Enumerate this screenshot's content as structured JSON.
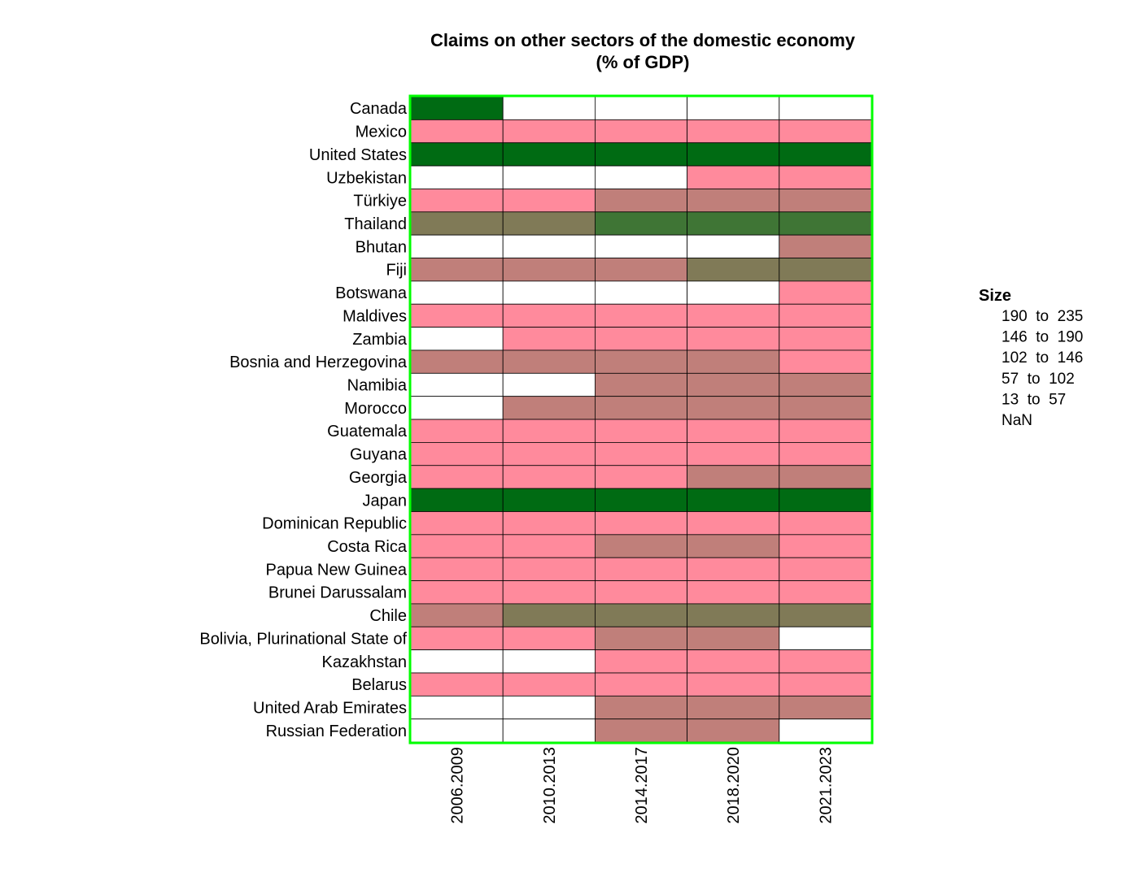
{
  "chart_data": {
    "type": "heatmap",
    "title_lines": [
      "Claims on other sectors of the domestic economy",
      "(% of GDP)"
    ],
    "columns": [
      "2006.2009",
      "2010.2013",
      "2014.2017",
      "2018.2020",
      "2021.2023"
    ],
    "rows": [
      "Canada",
      "Mexico",
      "United States",
      "Uzbekistan",
      "Türkiye",
      "Thailand",
      "Bhutan",
      "Fiji",
      "Botswana",
      "Maldives",
      "Zambia",
      "Bosnia and Herzegovina",
      "Namibia",
      "Morocco",
      "Guatemala",
      "Guyana",
      "Georgia",
      "Japan",
      "Dominican Republic",
      "Costa Rica",
      "Papua New Guinea",
      "Brunei Darussalam",
      "Chile",
      "Bolivia, Plurinational State of",
      "Kazakhstan",
      "Belarus",
      "United Arab Emirates",
      "Russian Federation"
    ],
    "bins": [
      {
        "label": "190  to  235",
        "low": 190,
        "high": 235,
        "color": "#006b13"
      },
      {
        "label": "146  to  190",
        "low": 146,
        "high": 190,
        "color": "#3f7535"
      },
      {
        "label": "102  to  146",
        "low": 102,
        "high": 146,
        "color": "#807a57"
      },
      {
        "label": "57  to  102",
        "low": 57,
        "high": 102,
        "color": "#c07f7a"
      },
      {
        "label": "13  to  57",
        "low": 13,
        "high": 57,
        "color": "#ff8a9c"
      },
      {
        "label": "NaN",
        "low": null,
        "high": null,
        "color": "#ffffff"
      }
    ],
    "values": [
      [
        0,
        5,
        5,
        5,
        5
      ],
      [
        4,
        4,
        4,
        4,
        4
      ],
      [
        0,
        0,
        0,
        0,
        0
      ],
      [
        5,
        5,
        5,
        4,
        4
      ],
      [
        4,
        4,
        3,
        3,
        3
      ],
      [
        2,
        2,
        1,
        1,
        1
      ],
      [
        5,
        5,
        5,
        5,
        3
      ],
      [
        3,
        3,
        3,
        2,
        2
      ],
      [
        5,
        5,
        5,
        5,
        4
      ],
      [
        4,
        4,
        4,
        4,
        4
      ],
      [
        5,
        4,
        4,
        4,
        4
      ],
      [
        3,
        3,
        3,
        3,
        4
      ],
      [
        5,
        5,
        3,
        3,
        3
      ],
      [
        5,
        3,
        3,
        3,
        3
      ],
      [
        4,
        4,
        4,
        4,
        4
      ],
      [
        4,
        4,
        4,
        4,
        4
      ],
      [
        4,
        4,
        4,
        3,
        3
      ],
      [
        0,
        0,
        0,
        0,
        0
      ],
      [
        4,
        4,
        4,
        4,
        4
      ],
      [
        4,
        4,
        3,
        3,
        4
      ],
      [
        4,
        4,
        4,
        4,
        4
      ],
      [
        4,
        4,
        4,
        4,
        4
      ],
      [
        3,
        2,
        2,
        2,
        2
      ],
      [
        4,
        4,
        3,
        3,
        5
      ],
      [
        5,
        5,
        4,
        4,
        4
      ],
      [
        4,
        4,
        4,
        4,
        4
      ],
      [
        5,
        5,
        3,
        3,
        3
      ],
      [
        5,
        5,
        3,
        3,
        5
      ]
    ],
    "legend": {
      "title": "Size",
      "placement": "right"
    },
    "frame_color": "#00ff00"
  }
}
